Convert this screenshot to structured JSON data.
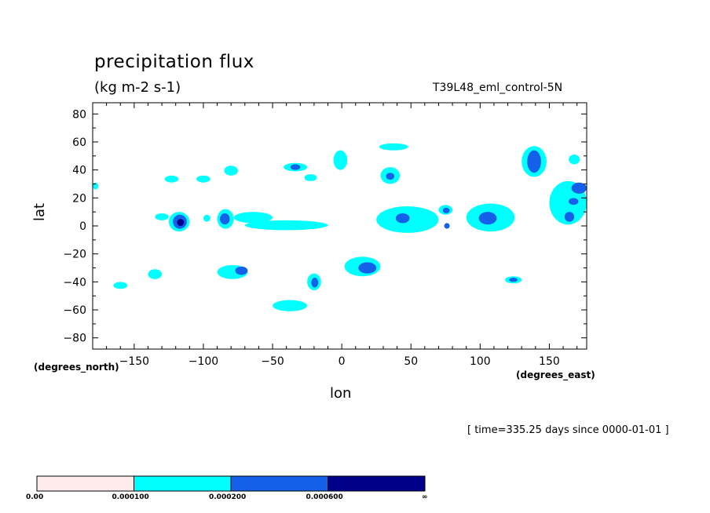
{
  "chart_data": {
    "type": "heatmap",
    "title": "precipitation flux",
    "units": "(kg m-2 s-1)",
    "run_id": "T39L48_eml_control-5N",
    "xlabel": "lon",
    "ylabel": "lat",
    "x_units_note": "(degrees_east)",
    "y_units_note": "(degrees_north)",
    "timestamp": "[ time=335.25 days since 0000-01-01 ]",
    "xlim": [
      -180,
      177
    ],
    "ylim": [
      -88,
      88
    ],
    "x_ticks": [
      -150,
      -100,
      -50,
      0,
      50,
      100,
      150
    ],
    "x_tick_labels": [
      "−150",
      "−100",
      "−50",
      "0",
      "50",
      "100",
      "150"
    ],
    "y_ticks": [
      80,
      60,
      40,
      20,
      0,
      -20,
      -40,
      -60,
      -80
    ],
    "y_tick_labels": [
      "80",
      "60",
      "40",
      "20",
      "0",
      "−20",
      "−40",
      "−60",
      "−80"
    ],
    "levels": [
      0.0,
      0.0001,
      0.0002,
      0.0006
    ],
    "level_labels": [
      "0.00",
      "0.000100",
      "0.000200",
      "0.000600",
      "∞"
    ],
    "level_colors": [
      "#ffebeb",
      "#00ffff",
      "#1560e8",
      "#00008b"
    ],
    "regions": [
      {
        "level": 1,
        "lon": [
          -125,
          -110
        ],
        "lat": [
          -4,
          10
        ]
      },
      {
        "level": 2,
        "lon": [
          -122,
          -112
        ],
        "lat": [
          -2,
          8
        ]
      },
      {
        "level": 3,
        "lon": [
          -119,
          -114
        ],
        "lat": [
          0,
          5
        ]
      },
      {
        "level": 1,
        "lon": [
          -90,
          -78
        ],
        "lat": [
          -2,
          12
        ]
      },
      {
        "level": 2,
        "lon": [
          -88,
          -81
        ],
        "lat": [
          1,
          9
        ]
      },
      {
        "level": 1,
        "lon": [
          -100,
          -95
        ],
        "lat": [
          3,
          8
        ]
      },
      {
        "level": 1,
        "lon": [
          -78,
          -50
        ],
        "lat": [
          2,
          10
        ]
      },
      {
        "level": 1,
        "lon": [
          -70,
          -10
        ],
        "lat": [
          -3,
          4
        ]
      },
      {
        "level": 1,
        "lon": [
          -135,
          -125
        ],
        "lat": [
          4,
          9
        ]
      },
      {
        "level": 1,
        "lon": [
          -128,
          -118
        ],
        "lat": [
          31,
          36
        ]
      },
      {
        "level": 1,
        "lon": [
          -105,
          -95
        ],
        "lat": [
          31,
          36
        ]
      },
      {
        "level": 1,
        "lon": [
          -85,
          -75
        ],
        "lat": [
          36,
          43
        ]
      },
      {
        "level": 1,
        "lon": [
          -42,
          -25
        ],
        "lat": [
          39,
          45
        ]
      },
      {
        "level": 2,
        "lon": [
          -37,
          -30
        ],
        "lat": [
          40,
          44
        ]
      },
      {
        "level": 1,
        "lon": [
          -27,
          -18
        ],
        "lat": [
          32,
          37
        ]
      },
      {
        "level": 1,
        "lon": [
          -6,
          4
        ],
        "lat": [
          40,
          54
        ]
      },
      {
        "level": 1,
        "lon": [
          28,
          42
        ],
        "lat": [
          30,
          42
        ]
      },
      {
        "level": 2,
        "lon": [
          32,
          38
        ],
        "lat": [
          33,
          38
        ]
      },
      {
        "level": 1,
        "lon": [
          27,
          48
        ],
        "lat": [
          54,
          59
        ]
      },
      {
        "level": 1,
        "lon": [
          25,
          70
        ],
        "lat": [
          -5,
          14
        ]
      },
      {
        "level": 2,
        "lon": [
          39,
          49
        ],
        "lat": [
          2,
          9
        ]
      },
      {
        "level": 1,
        "lon": [
          70,
          80
        ],
        "lat": [
          8,
          15
        ]
      },
      {
        "level": 2,
        "lon": [
          73,
          78
        ],
        "lat": [
          9,
          13
        ]
      },
      {
        "level": 2,
        "lon": [
          74,
          78
        ],
        "lat": [
          -2,
          2
        ]
      },
      {
        "level": 1,
        "lon": [
          90,
          125
        ],
        "lat": [
          -4,
          16
        ]
      },
      {
        "level": 2,
        "lon": [
          99,
          112
        ],
        "lat": [
          1,
          10
        ]
      },
      {
        "level": 1,
        "lon": [
          130,
          148
        ],
        "lat": [
          35,
          57
        ]
      },
      {
        "level": 2,
        "lon": [
          134,
          144
        ],
        "lat": [
          38,
          54
        ]
      },
      {
        "level": 1,
        "lon": [
          150,
          177
        ],
        "lat": [
          1,
          32
        ]
      },
      {
        "level": 2,
        "lon": [
          161,
          168
        ],
        "lat": [
          3,
          10
        ]
      },
      {
        "level": 2,
        "lon": [
          164,
          171
        ],
        "lat": [
          15,
          20
        ]
      },
      {
        "level": 2,
        "lon": [
          166,
          177
        ],
        "lat": [
          23,
          31
        ]
      },
      {
        "level": 1,
        "lon": [
          164,
          172
        ],
        "lat": [
          44,
          51
        ]
      },
      {
        "level": 1,
        "lon": [
          2,
          28
        ],
        "lat": [
          -36,
          -22
        ]
      },
      {
        "level": 2,
        "lon": [
          12,
          25
        ],
        "lat": [
          -34,
          -26
        ]
      },
      {
        "level": 1,
        "lon": [
          -90,
          -68
        ],
        "lat": [
          -38,
          -28
        ]
      },
      {
        "level": 2,
        "lon": [
          -77,
          -68
        ],
        "lat": [
          -35,
          -29
        ]
      },
      {
        "level": 1,
        "lon": [
          -25,
          -15
        ],
        "lat": [
          -46,
          -34
        ]
      },
      {
        "level": 2,
        "lon": [
          -22,
          -17
        ],
        "lat": [
          -44,
          -37
        ]
      },
      {
        "level": 1,
        "lon": [
          -50,
          -25
        ],
        "lat": [
          -61,
          -53
        ]
      },
      {
        "level": 1,
        "lon": [
          -140,
          -130
        ],
        "lat": [
          -38,
          -31
        ]
      },
      {
        "level": 1,
        "lon": [
          -165,
          -155
        ],
        "lat": [
          -45,
          -40
        ]
      },
      {
        "level": 1,
        "lon": [
          118,
          130
        ],
        "lat": [
          -41,
          -36
        ]
      },
      {
        "level": 2,
        "lon": [
          121,
          127
        ],
        "lat": [
          -40,
          -37
        ]
      },
      {
        "level": 1,
        "lon": [
          -180,
          -176
        ],
        "lat": [
          26,
          31
        ]
      }
    ]
  }
}
